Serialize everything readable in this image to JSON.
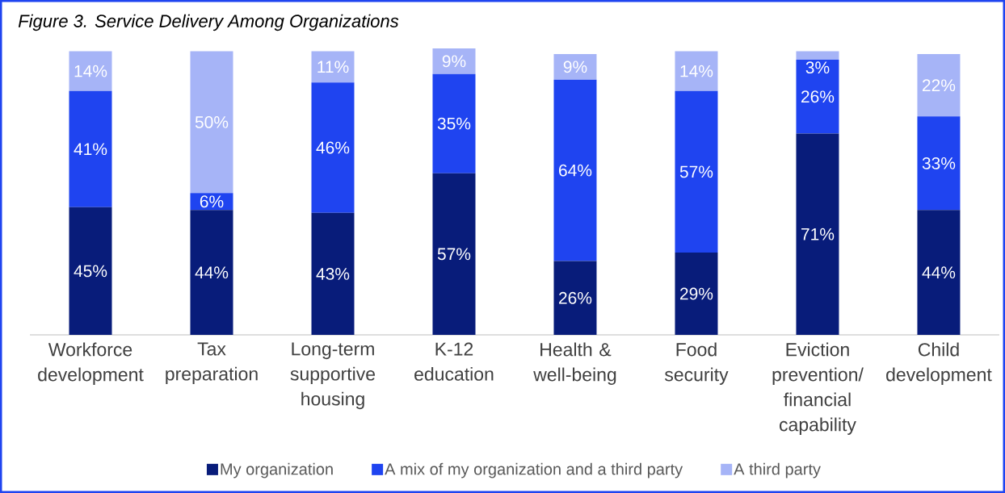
{
  "chart_data": {
    "type": "bar",
    "stacked": true,
    "legend": "bottom",
    "title": "Figure 3. Service Delivery Among Organizations",
    "categories": [
      "Workforce development",
      "Tax preparation",
      "Long-term supportive housing",
      "K-12 education",
      "Health & well-being",
      "Food security",
      "Eviction prevention/ financial capability",
      "Child development"
    ],
    "series": [
      {
        "name": "My organization",
        "color": "#081c7a",
        "values": [
          45,
          44,
          43,
          57,
          26,
          29,
          71,
          44
        ],
        "value_labels": [
          "45%",
          "44%",
          "43%",
          "57%",
          "26%",
          "29%",
          "71%",
          "44%"
        ]
      },
      {
        "name": "A mix of my organization and a third party",
        "color": "#1f44f0",
        "values": [
          41,
          6,
          46,
          35,
          64,
          57,
          26,
          33
        ],
        "value_labels": [
          "41%",
          "6%",
          "46%",
          "35%",
          "64%",
          "57%",
          "26%",
          "33%"
        ]
      },
      {
        "name": "A third party",
        "color": "#a6b4f7",
        "values": [
          14,
          50,
          11,
          9,
          9,
          14,
          3,
          22
        ],
        "value_labels": [
          "14%",
          "50%",
          "11%",
          "9%",
          "9%",
          "14%",
          "3%",
          "22%"
        ]
      }
    ]
  }
}
